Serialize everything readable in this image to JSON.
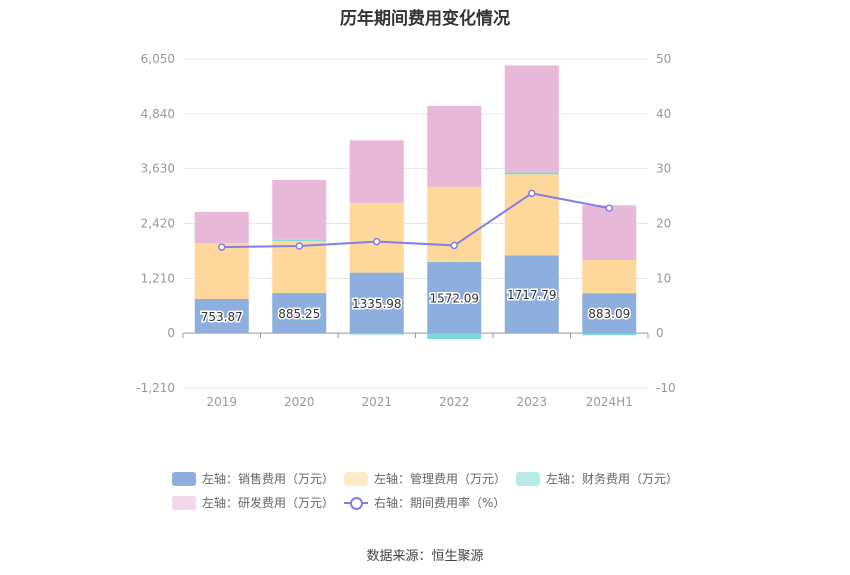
{
  "chart_data": {
    "type": "bar",
    "title": "历年期间费用变化情况",
    "categories": [
      "2019",
      "2020",
      "2021",
      "2022",
      "2023",
      "2024H1"
    ],
    "y_left_ticks": [
      "6,050",
      "4,840",
      "3,630",
      "2,420",
      "1,210",
      "0",
      "-1,210"
    ],
    "y_right_ticks": [
      "50",
      "40",
      "30",
      "20",
      "10",
      "0",
      "-10"
    ],
    "y_left_lim": [
      -1210,
      6050
    ],
    "y_right_lim": [
      -10,
      50
    ],
    "series": [
      {
        "name": "左轴：销售费用（万元）",
        "axis": "left",
        "stack": "cost",
        "color": "#8eaedd",
        "values": [
          753.87,
          885.25,
          1335.98,
          1572.09,
          1717.79,
          883.09
        ],
        "labels_shown": true
      },
      {
        "name": "左轴：管理费用（万元）",
        "axis": "left",
        "stack": "cost",
        "color": "#fed89a",
        "values": [
          1230,
          1150,
          1540,
          1660,
          1790,
          730
        ]
      },
      {
        "name": "左轴：财务费用（万元）",
        "axis": "left",
        "stack": "cost",
        "color": "#7dd8d8",
        "values": [
          -10,
          25,
          -30,
          -130,
          40,
          -45
        ]
      },
      {
        "name": "左轴：研发费用（万元）",
        "axis": "left",
        "stack": "cost",
        "color": "#e8b8d8",
        "values": [
          690,
          1320,
          1380,
          1780,
          2360,
          1210
        ]
      },
      {
        "name": "右轴：期间费用率（%）",
        "axis": "right",
        "type": "line",
        "color": "#8080e8",
        "values": [
          15.7,
          15.9,
          16.7,
          16.0,
          25.5,
          22.8
        ]
      }
    ],
    "legend_position": "bottom",
    "grid": true
  },
  "source_text": "数据来源：恒生聚源"
}
